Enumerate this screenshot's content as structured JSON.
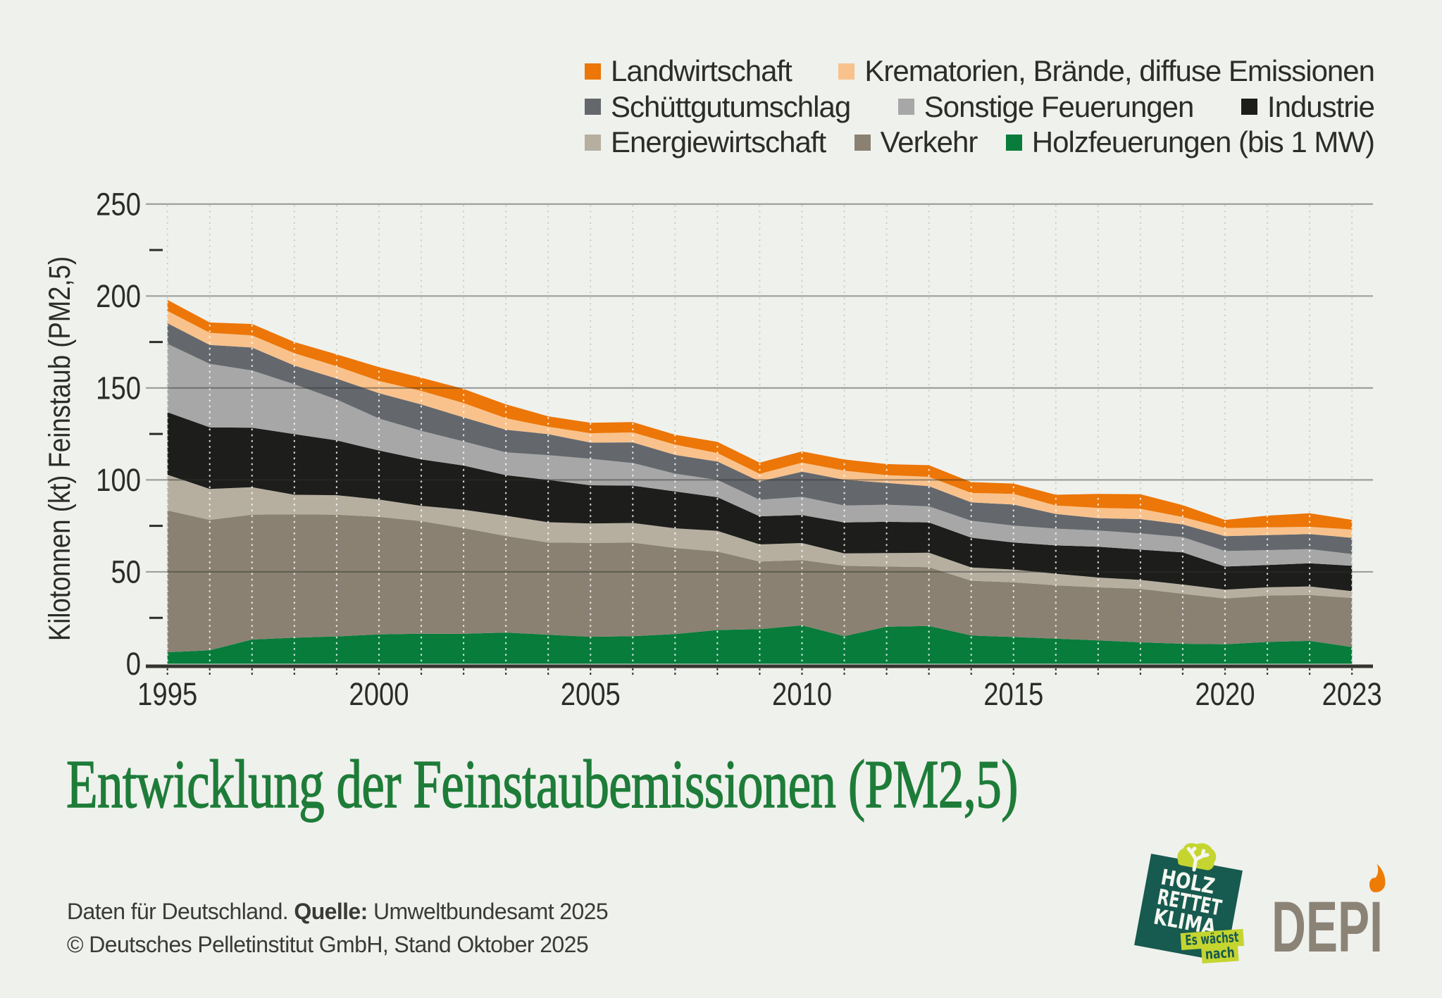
{
  "title": {
    "text": "Entwicklung der Feinstaubemissionen (PM2,5)",
    "color": "#1e7c39"
  },
  "footer": {
    "line1_prefix": "Daten für Deutschland.",
    "line1_bold": "Quelle:",
    "line1_suffix": "Umweltbundesamt 2025",
    "line2": "© Deutsches Pelletinstitut GmbH, Stand Oktober 2025"
  },
  "colors": {
    "background": "#eff1ed",
    "gridline": "#9c9c98",
    "axis_line": "#35342f",
    "tick_text": "#2c2c2a",
    "title_green": "#1e7c39"
  },
  "chart_data": {
    "type": "area",
    "stacked": true,
    "title": "Entwicklung der Feinstaubemissionen (PM2,5)",
    "xlabel": "",
    "ylabel": "Kilotonnen (kt) Feinstaub (PM2,5)",
    "x": [
      1995,
      1996,
      1997,
      1998,
      1999,
      2000,
      2001,
      2002,
      2003,
      2004,
      2005,
      2006,
      2007,
      2008,
      2009,
      2010,
      2011,
      2012,
      2013,
      2014,
      2015,
      2016,
      2017,
      2018,
      2019,
      2020,
      2021,
      2022,
      2023
    ],
    "x_tick_labels": [
      "1995",
      "2000",
      "2005",
      "2010",
      "2015",
      "2020",
      "2023"
    ],
    "x_tick_years": [
      1995,
      2000,
      2005,
      2010,
      2015,
      2020,
      2023
    ],
    "ylim": [
      0,
      250
    ],
    "y_major_ticks": [
      0,
      50,
      100,
      150,
      200,
      250
    ],
    "y_minor_ticks": [
      25,
      75,
      125,
      175,
      225
    ],
    "grid": true,
    "legend_position": "top-right",
    "unit": "kt",
    "series_bottom_to_top": [
      "Holzfeuerungen (bis 1 MW)",
      "Verkehr",
      "Energiewirtschaft",
      "Industrie",
      "Sonstige Feuerungen",
      "Schüttgutumschlag",
      "Krematorien, Brände, diffuse Emissionen",
      "Landwirtschaft"
    ],
    "series": [
      {
        "name": "Landwirtschaft",
        "color": "#ec7607",
        "values": [
          6.0,
          5.6,
          6.2,
          6.1,
          6.5,
          7.5,
          7.2,
          7.7,
          7.5,
          5.7,
          5.7,
          5.7,
          5.4,
          6.1,
          6.1,
          6.1,
          6.1,
          6.0,
          6.3,
          5.9,
          5.6,
          5.8,
          7.6,
          7.9,
          6.5,
          4.4,
          6.4,
          7.4,
          5.3
        ]
      },
      {
        "name": "Krematorien, Brände, diffuse Emissionen",
        "color": "#f9c28c",
        "values": [
          6.7,
          6.6,
          6.6,
          6.7,
          6.7,
          6.6,
          7.4,
          7.8,
          6.3,
          4.0,
          5.1,
          5.4,
          5.6,
          4.6,
          4.1,
          4.9,
          4.9,
          4.2,
          5.1,
          5.1,
          5.8,
          4.6,
          5.6,
          5.6,
          4.0,
          4.4,
          4.2,
          3.9,
          4.5
        ]
      },
      {
        "name": "Schüttgutumschlag",
        "color": "#64686d",
        "values": [
          11.2,
          10.3,
          12.5,
          10.2,
          11.4,
          13.8,
          14.3,
          13.1,
          12.3,
          11.4,
          8.8,
          11.2,
          10.2,
          10.0,
          10.0,
          13.7,
          14.0,
          11.9,
          11.0,
          10.0,
          11.4,
          8.0,
          6.7,
          7.8,
          6.9,
          8.1,
          8.2,
          8.2,
          8.8
        ]
      },
      {
        "name": "Sonstige Feuerungen",
        "color": "#a7a7a7",
        "values": [
          37.2,
          34.5,
          31.1,
          27.1,
          22.2,
          17.4,
          15.5,
          13.1,
          12.4,
          13.5,
          14.4,
          12.3,
          9.7,
          9.4,
          9.0,
          9.9,
          9.2,
          9.3,
          8.7,
          9.2,
          9.2,
          9.1,
          8.8,
          8.8,
          8.3,
          8.4,
          8.1,
          7.7,
          6.4
        ]
      },
      {
        "name": "Industrie",
        "color": "#1d1d1b",
        "values": [
          34.0,
          33.5,
          32.4,
          33.0,
          29.8,
          26.7,
          25.3,
          24.0,
          22.1,
          23.0,
          20.8,
          20.3,
          20.0,
          18.3,
          15.3,
          15.2,
          16.9,
          17.0,
          16.5,
          16.2,
          14.7,
          15.4,
          16.8,
          16.5,
          17.5,
          12.6,
          12.1,
          12.6,
          13.8
        ]
      },
      {
        "name": "Energiewirtschaft",
        "color": "#b6afa0",
        "values": [
          19.4,
          16.8,
          14.9,
          10.6,
          10.6,
          9.4,
          8.3,
          10.0,
          11.0,
          11.0,
          10.5,
          10.7,
          10.7,
          11.2,
          9.3,
          9.3,
          6.7,
          7.3,
          7.8,
          7.2,
          7.0,
          6.3,
          5.3,
          4.8,
          5.0,
          4.8,
          4.5,
          4.7,
          3.7
        ]
      },
      {
        "name": "Verkehr",
        "color": "#8a8172",
        "values": [
          77.1,
          70.9,
          67.9,
          67.1,
          66.2,
          63.9,
          61.2,
          57.5,
          52.5,
          50.2,
          51.1,
          50.9,
          46.8,
          42.7,
          36.7,
          35.5,
          38.3,
          32.7,
          32.0,
          29.8,
          29.7,
          29.0,
          28.9,
          29.1,
          27.2,
          24.9,
          25.2,
          24.9,
          26.7
        ]
      },
      {
        "name": "Holzfeuerungen (bis 1 MW)",
        "color": "#077c3b",
        "values": [
          6.3,
          7.4,
          13.2,
          14.2,
          14.9,
          16.0,
          16.4,
          16.3,
          17.0,
          15.8,
          14.7,
          15.0,
          16.2,
          18.4,
          18.9,
          20.9,
          15.0,
          20.2,
          20.6,
          15.4,
          14.6,
          13.7,
          12.7,
          11.7,
          10.9,
          10.6,
          11.9,
          12.5,
          9.1
        ]
      }
    ],
    "legend_rows": [
      [
        "Landwirtschaft",
        "Krematorien, Brände, diffuse Emissionen"
      ],
      [
        "Schüttgutumschlag",
        "Sonstige Feuerungen",
        "Industrie"
      ],
      [
        "Energiewirtschaft",
        "Verkehr",
        "Holzfeuerungen (bis 1 MW)"
      ]
    ]
  },
  "logos": {
    "hrk": {
      "line1": "HOLZ",
      "line2": "RETTET",
      "line3": "KLIMA",
      "tag_line1": "Es wächst",
      "tag_line2": "nach",
      "square_color": "#175a4f",
      "lime_color": "#c5d52f",
      "text_color": "#f4f6f0"
    },
    "depi": {
      "text": "DEPI",
      "color": "#8c8377",
      "flame_color": "#ee7b04"
    }
  }
}
